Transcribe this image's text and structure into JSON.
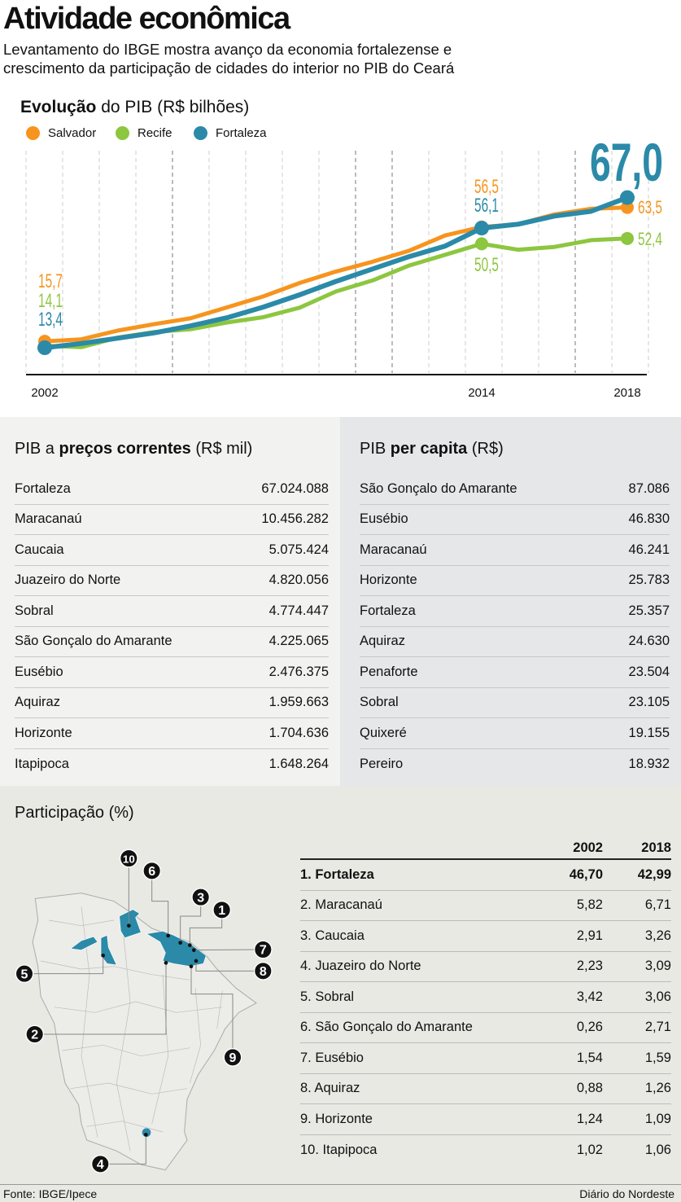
{
  "header": {
    "title": "Atividade econômica",
    "subtitle_line1": "Levantamento do IBGE mostra avanço da economia fortalezense e",
    "subtitle_line2": "crescimento da participação de cidades do interior no PIB do Ceará"
  },
  "chart_data": {
    "type": "line",
    "title_bold": "Evolução",
    "title_rest": " do PIB (R$ bilhões)",
    "x": [
      2002,
      2003,
      2004,
      2005,
      2006,
      2007,
      2008,
      2009,
      2010,
      2011,
      2012,
      2013,
      2014,
      2015,
      2016,
      2017,
      2018
    ],
    "x_tick_labels": [
      "2002",
      "2014",
      "2018"
    ],
    "x_ticks": [
      2002,
      2014,
      2018
    ],
    "ylim": [
      10,
      70
    ],
    "grid": "vertical dashed",
    "legend_position": "top-left",
    "series": [
      {
        "name": "Salvador",
        "color": "#f7941d",
        "values": [
          15.7,
          16.4,
          19.5,
          21.8,
          23.9,
          27.8,
          31.7,
          36.5,
          40.6,
          44.1,
          48.0,
          53.5,
          56.5,
          57.5,
          61.0,
          63.0,
          63.5
        ]
      },
      {
        "name": "Recife",
        "color": "#8dc63f",
        "values": [
          14.1,
          13.6,
          17.0,
          19.0,
          20.0,
          22.4,
          24.3,
          27.7,
          33.5,
          37.4,
          42.7,
          46.6,
          50.5,
          48.4,
          49.4,
          51.8,
          52.4
        ]
      },
      {
        "name": "Fortaleza",
        "color": "#2b8aa8",
        "values": [
          13.4,
          14.9,
          16.8,
          18.7,
          21.2,
          24.1,
          27.9,
          32.3,
          37.1,
          41.5,
          45.9,
          49.7,
          56.1,
          57.5,
          60.4,
          62.1,
          67.0
        ]
      }
    ],
    "annotations": [
      {
        "series": "Salvador",
        "year": 2002,
        "label": "15,7"
      },
      {
        "series": "Recife",
        "year": 2002,
        "label": "14,1"
      },
      {
        "series": "Fortaleza",
        "year": 2002,
        "label": "13,4"
      },
      {
        "series": "Salvador",
        "year": 2014,
        "label": "56,5"
      },
      {
        "series": "Fortaleza",
        "year": 2014,
        "label": "56,1"
      },
      {
        "series": "Recife",
        "year": 2014,
        "label": "50,5"
      },
      {
        "series": "Fortaleza",
        "year": 2018,
        "label": "67,0"
      },
      {
        "series": "Salvador",
        "year": 2018,
        "label": "63,5"
      },
      {
        "series": "Recife",
        "year": 2018,
        "label": "52,4"
      }
    ]
  },
  "pib_correntes": {
    "title_pre": "PIB a ",
    "title_bold": "preços correntes",
    "title_post": " (R$ mil)",
    "rows": [
      {
        "city": "Fortaleza",
        "value": "67.024.088"
      },
      {
        "city": "Maracanaú",
        "value": "10.456.282"
      },
      {
        "city": "Caucaia",
        "value": "5.075.424"
      },
      {
        "city": "Juazeiro do Norte",
        "value": "4.820.056"
      },
      {
        "city": "Sobral",
        "value": "4.774.447"
      },
      {
        "city": "São Gonçalo do Amarante",
        "value": "4.225.065"
      },
      {
        "city": "Eusébio",
        "value": "2.476.375"
      },
      {
        "city": "Aquiraz",
        "value": "1.959.663"
      },
      {
        "city": "Horizonte",
        "value": "1.704.636"
      },
      {
        "city": "Itapipoca",
        "value": "1.648.264"
      }
    ]
  },
  "pib_per_capita": {
    "title_pre": "PIB ",
    "title_bold": "per capita",
    "title_post": " (R$)",
    "rows": [
      {
        "city": "São Gonçalo do Amarante",
        "value": "87.086"
      },
      {
        "city": "Eusébio",
        "value": "46.830"
      },
      {
        "city": "Maracanaú",
        "value": "46.241"
      },
      {
        "city": "Horizonte",
        "value": "25.783"
      },
      {
        "city": "Fortaleza",
        "value": "25.357"
      },
      {
        "city": "Aquiraz",
        "value": "24.630"
      },
      {
        "city": "Penaforte",
        "value": "23.504"
      },
      {
        "city": "Sobral",
        "value": "23.105"
      },
      {
        "city": "Quixeré",
        "value": "19.155"
      },
      {
        "city": "Pereiro",
        "value": "18.932"
      }
    ]
  },
  "participacao": {
    "title": "Participação (%)",
    "col_2002": "2002",
    "col_2018": "2018",
    "rows": [
      {
        "city": "1. Fortaleza",
        "v2002": "46,70",
        "v2018": "42,99"
      },
      {
        "city": "2. Maracanaú",
        "v2002": "5,82",
        "v2018": "6,71"
      },
      {
        "city": "3. Caucaia",
        "v2002": "2,91",
        "v2018": "3,26"
      },
      {
        "city": "4. Juazeiro do Norte",
        "v2002": "2,23",
        "v2018": "3,09"
      },
      {
        "city": "5. Sobral",
        "v2002": "3,42",
        "v2018": "3,06"
      },
      {
        "city": "6. São Gonçalo do Amarante",
        "v2002": "0,26",
        "v2018": "2,71"
      },
      {
        "city": "7. Eusébio",
        "v2002": "1,54",
        "v2018": "1,59"
      },
      {
        "city": "8. Aquiraz",
        "v2002": "0,88",
        "v2018": "1,26"
      },
      {
        "city": "9. Horizonte",
        "v2002": "1,24",
        "v2018": "1,09"
      },
      {
        "city": "10. Itapipoca",
        "v2002": "1,02",
        "v2018": "1,06"
      }
    ],
    "map_markers": [
      "1",
      "2",
      "3",
      "4",
      "5",
      "6",
      "7",
      "8",
      "9",
      "10"
    ],
    "map_color": "#2b8aa8"
  },
  "footer": {
    "source": "Fonte: IBGE/Ipece",
    "brand": "Diário do Nordeste"
  }
}
